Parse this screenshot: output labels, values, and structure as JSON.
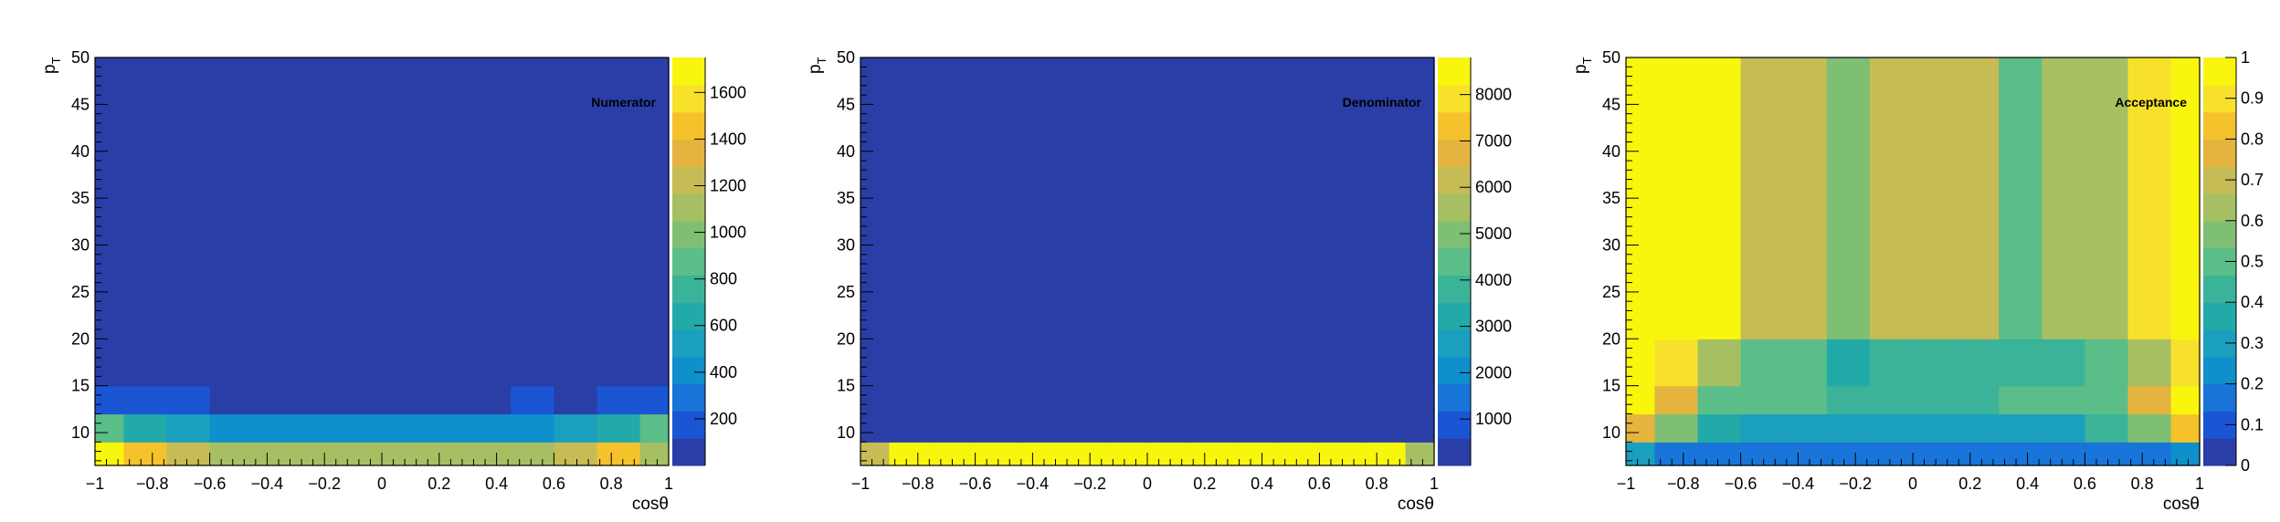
{
  "palette": [
    "#2a3ea8",
    "#1a55d4",
    "#1874d8",
    "#0f8fcc",
    "#1a9fbe",
    "#22aaa9",
    "#3bb399",
    "#5bbd87",
    "#7fbf74",
    "#a7bf63",
    "#c7bb56",
    "#e4b43f",
    "#f5c22c",
    "#f8e12a",
    "#f9f60e"
  ],
  "chart_data": [
    {
      "type": "heatmap",
      "label": "Numerator",
      "xlabel": "cosθ",
      "ylabel": "p_T",
      "xlim": [
        -1,
        1
      ],
      "ylim": [
        6.5,
        50
      ],
      "x_ticks": [
        "−1",
        "−0.8",
        "−0.6",
        "−0.4",
        "−0.2",
        "0",
        "0.2",
        "0.4",
        "0.6",
        "0.8",
        "1"
      ],
      "y_ticks": [
        "10",
        "15",
        "20",
        "25",
        "30",
        "35",
        "40",
        "45",
        "50"
      ],
      "x_edges": [
        -1,
        -0.9,
        -0.75,
        -0.6,
        -0.45,
        -0.3,
        -0.15,
        0,
        0.15,
        0.3,
        0.45,
        0.6,
        0.75,
        0.9,
        1
      ],
      "y_edges": [
        6.5,
        9,
        12,
        15,
        20,
        50
      ],
      "z": [
        [
          1650,
          1450,
          1250,
          1050,
          1050,
          1050,
          1050,
          1050,
          1050,
          1050,
          1050,
          1250,
          1500,
          1150
        ],
        [
          850,
          650,
          550,
          400,
          400,
          400,
          400,
          400,
          400,
          400,
          400,
          500,
          650,
          850
        ],
        [
          200,
          200,
          200,
          10,
          10,
          10,
          10,
          10,
          10,
          10,
          200,
          10,
          200,
          200
        ],
        [
          10,
          10,
          10,
          10,
          10,
          10,
          10,
          10,
          10,
          10,
          10,
          10,
          10,
          10
        ],
        [
          10,
          10,
          10,
          10,
          10,
          10,
          10,
          10,
          10,
          10,
          10,
          10,
          10,
          10
        ]
      ],
      "zlim": [
        0,
        1750
      ],
      "colorbar_ticks": [
        "200",
        "400",
        "600",
        "800",
        "1000",
        "1200",
        "1400",
        "1600"
      ],
      "colorbar_values": [
        200,
        400,
        600,
        800,
        1000,
        1200,
        1400,
        1600
      ]
    },
    {
      "type": "heatmap",
      "label": "Denominator",
      "xlabel": "cosθ",
      "ylabel": "p_T",
      "xlim": [
        -1,
        1
      ],
      "ylim": [
        6.5,
        50
      ],
      "x_ticks": [
        "−1",
        "−0.8",
        "−0.6",
        "−0.4",
        "−0.2",
        "0",
        "0.2",
        "0.4",
        "0.6",
        "0.8",
        "1"
      ],
      "y_ticks": [
        "10",
        "15",
        "20",
        "25",
        "30",
        "35",
        "40",
        "45",
        "50"
      ],
      "x_edges": [
        -1,
        -0.9,
        -0.75,
        -0.6,
        -0.45,
        -0.3,
        -0.15,
        0,
        0.15,
        0.3,
        0.45,
        0.6,
        0.75,
        0.9,
        1
      ],
      "y_edges": [
        6.5,
        9,
        12,
        15,
        20,
        50
      ],
      "z": [
        [
          6400,
          8700,
          8700,
          8700,
          8700,
          8700,
          8700,
          8700,
          8700,
          8700,
          8700,
          8700,
          8700,
          5700
        ],
        [
          400,
          400,
          400,
          400,
          400,
          400,
          400,
          400,
          400,
          400,
          400,
          400,
          400,
          400
        ],
        [
          10,
          10,
          10,
          10,
          10,
          10,
          10,
          10,
          10,
          10,
          10,
          10,
          10,
          10
        ],
        [
          10,
          10,
          10,
          10,
          10,
          10,
          10,
          10,
          10,
          10,
          10,
          10,
          10,
          10
        ],
        [
          10,
          10,
          10,
          10,
          10,
          10,
          10,
          10,
          10,
          10,
          10,
          10,
          10,
          10
        ]
      ],
      "zlim": [
        0,
        8800
      ],
      "colorbar_ticks": [
        "1000",
        "2000",
        "3000",
        "4000",
        "5000",
        "6000",
        "7000",
        "8000"
      ],
      "colorbar_values": [
        1000,
        2000,
        3000,
        4000,
        5000,
        6000,
        7000,
        8000
      ]
    },
    {
      "type": "heatmap",
      "label": "Acceptance",
      "xlabel": "cosθ",
      "ylabel": "p_T",
      "xlim": [
        -1,
        1
      ],
      "ylim": [
        6.5,
        50
      ],
      "x_ticks": [
        "−1",
        "−0.8",
        "−0.6",
        "−0.4",
        "−0.2",
        "0",
        "0.2",
        "0.4",
        "0.6",
        "0.8",
        "1"
      ],
      "y_ticks": [
        "10",
        "15",
        "20",
        "25",
        "30",
        "35",
        "40",
        "45",
        "50"
      ],
      "x_edges": [
        -1,
        -0.9,
        -0.75,
        -0.6,
        -0.45,
        -0.3,
        -0.15,
        0,
        0.15,
        0.3,
        0.45,
        0.6,
        0.75,
        0.9,
        1
      ],
      "y_edges": [
        6.5,
        9,
        12,
        15,
        20,
        50
      ],
      "z": [
        [
          0.28,
          0.18,
          0.18,
          0.18,
          0.18,
          0.18,
          0.18,
          0.18,
          0.18,
          0.18,
          0.18,
          0.18,
          0.18,
          0.25
        ],
        [
          0.78,
          0.57,
          0.37,
          0.33,
          0.33,
          0.3,
          0.3,
          0.3,
          0.3,
          0.33,
          0.33,
          0.42,
          0.57,
          0.82
        ],
        [
          1.0,
          0.78,
          0.5,
          0.48,
          0.48,
          0.4,
          0.4,
          0.4,
          0.4,
          0.48,
          0.48,
          0.52,
          0.78,
          1.0
        ],
        [
          1.0,
          0.93,
          0.65,
          0.5,
          0.5,
          0.37,
          0.45,
          0.45,
          0.45,
          0.45,
          0.45,
          0.5,
          0.62,
          0.93
        ],
        [
          1.0,
          1.0,
          1.0,
          0.67,
          0.67,
          0.57,
          0.7,
          0.7,
          0.7,
          0.47,
          0.65,
          0.65,
          0.87,
          1.0
        ]
      ],
      "zlim": [
        0,
        1
      ],
      "colorbar_ticks": [
        "0",
        "0.1",
        "0.2",
        "0.3",
        "0.4",
        "0.5",
        "0.6",
        "0.7",
        "0.8",
        "0.9",
        "1"
      ],
      "colorbar_values": [
        0,
        0.1,
        0.2,
        0.3,
        0.4,
        0.5,
        0.6,
        0.7,
        0.8,
        0.9,
        1
      ]
    }
  ]
}
